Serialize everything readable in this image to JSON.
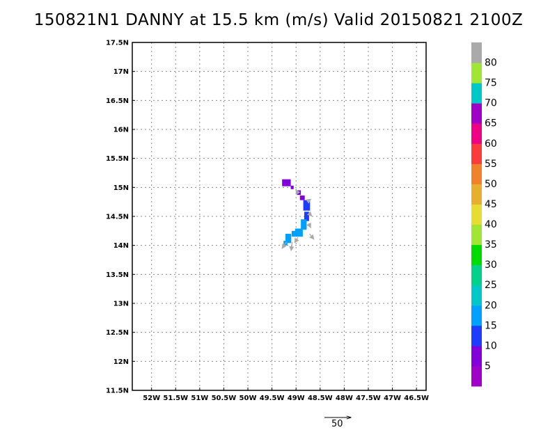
{
  "title": "150821N1 DANNY at 15.5 km (m/s) Valid 20150821 2100Z",
  "chart_data": {
    "type": "heatmap",
    "title": "150821N1 DANNY at 15.5 km (m/s) Valid 20150821 2100Z",
    "xlim": [
      -52.4,
      -46.3
    ],
    "ylim": [
      11.5,
      17.5
    ],
    "grid": true,
    "x_ticks": [
      {
        "value": -52.0,
        "label": "52W"
      },
      {
        "value": -51.5,
        "label": "51.5W"
      },
      {
        "value": -51.0,
        "label": "51W"
      },
      {
        "value": -50.5,
        "label": "50.5W"
      },
      {
        "value": -50.0,
        "label": "50W"
      },
      {
        "value": -49.5,
        "label": "49.5W"
      },
      {
        "value": -49.0,
        "label": "49W"
      },
      {
        "value": -48.5,
        "label": "48.5W"
      },
      {
        "value": -48.0,
        "label": "48W"
      },
      {
        "value": -47.5,
        "label": "47.5W"
      },
      {
        "value": -47.0,
        "label": "47W"
      },
      {
        "value": -46.5,
        "label": "46.5W"
      }
    ],
    "y_ticks": [
      {
        "value": 11.5,
        "label": "11.5N"
      },
      {
        "value": 12.0,
        "label": "12N"
      },
      {
        "value": 12.5,
        "label": "12.5N"
      },
      {
        "value": 13.0,
        "label": "13N"
      },
      {
        "value": 13.5,
        "label": "13.5N"
      },
      {
        "value": 14.0,
        "label": "14N"
      },
      {
        "value": 14.5,
        "label": "14.5N"
      },
      {
        "value": 15.0,
        "label": "15N"
      },
      {
        "value": 15.5,
        "label": "15.5N"
      },
      {
        "value": 16.0,
        "label": "16N"
      },
      {
        "value": 16.5,
        "label": "16.5N"
      },
      {
        "value": 17.0,
        "label": "17N"
      },
      {
        "value": 17.5,
        "label": "17.5N"
      }
    ],
    "cells": [
      {
        "lon": -49.2,
        "lat": 15.08,
        "value": 7,
        "w": 0.18,
        "h": 0.12
      },
      {
        "lon": -49.08,
        "lat": 15.0,
        "value": 7,
        "w": 0.06,
        "h": 0.06
      },
      {
        "lon": -48.94,
        "lat": 14.91,
        "value": 8,
        "w": 0.08,
        "h": 0.08
      },
      {
        "lon": -48.87,
        "lat": 14.82,
        "value": 7,
        "w": 0.1,
        "h": 0.08
      },
      {
        "lon": -48.78,
        "lat": 14.69,
        "value": 12,
        "w": 0.14,
        "h": 0.18
      },
      {
        "lon": -48.78,
        "lat": 14.5,
        "value": 12,
        "w": 0.1,
        "h": 0.16
      },
      {
        "lon": -48.84,
        "lat": 14.36,
        "value": 17,
        "w": 0.12,
        "h": 0.18
      },
      {
        "lon": -48.94,
        "lat": 14.22,
        "value": 17,
        "w": 0.16,
        "h": 0.14
      },
      {
        "lon": -49.04,
        "lat": 14.2,
        "value": 18,
        "w": 0.1,
        "h": 0.1
      },
      {
        "lon": -49.16,
        "lat": 14.12,
        "value": 17,
        "w": 0.12,
        "h": 0.16
      },
      {
        "lon": -49.22,
        "lat": 14.04,
        "value": 16,
        "w": 0.08,
        "h": 0.08
      }
    ],
    "vectors": [
      {
        "lon": -49.2,
        "lat": 14.06,
        "u": -4,
        "v": -6
      },
      {
        "lon": -49.08,
        "lat": 14.06,
        "u": -1,
        "v": -8
      },
      {
        "lon": -48.96,
        "lat": 14.14,
        "u": -3,
        "v": -5
      },
      {
        "lon": -48.72,
        "lat": 14.2,
        "u": 4,
        "v": -5
      },
      {
        "lon": -48.74,
        "lat": 14.38,
        "u": 2,
        "v": -4
      },
      {
        "lon": -48.74,
        "lat": 14.56,
        "u": 3,
        "v": -3
      },
      {
        "lon": -48.76,
        "lat": 14.76,
        "u": 3,
        "v": 2
      },
      {
        "lon": -48.96,
        "lat": 14.9,
        "u": -2,
        "v": 3
      }
    ],
    "colorbar": {
      "labels": [
        "5",
        "10",
        "15",
        "20",
        "25",
        "30",
        "35",
        "40",
        "45",
        "50",
        "55",
        "60",
        "65",
        "70",
        "75",
        "80"
      ],
      "colors": [
        "#a000c8",
        "#8200dc",
        "#1e3cff",
        "#00a0ff",
        "#00c8c8",
        "#00d28c",
        "#00dc00",
        "#a0e632",
        "#e6dc32",
        "#e6af2d",
        "#f08228",
        "#fa3c3c",
        "#f00082",
        "#a000c8",
        "#00c8c8",
        "#a0e632",
        "#aaaaaa"
      ]
    },
    "reference_vector": {
      "label": "50",
      "value": 50
    }
  }
}
